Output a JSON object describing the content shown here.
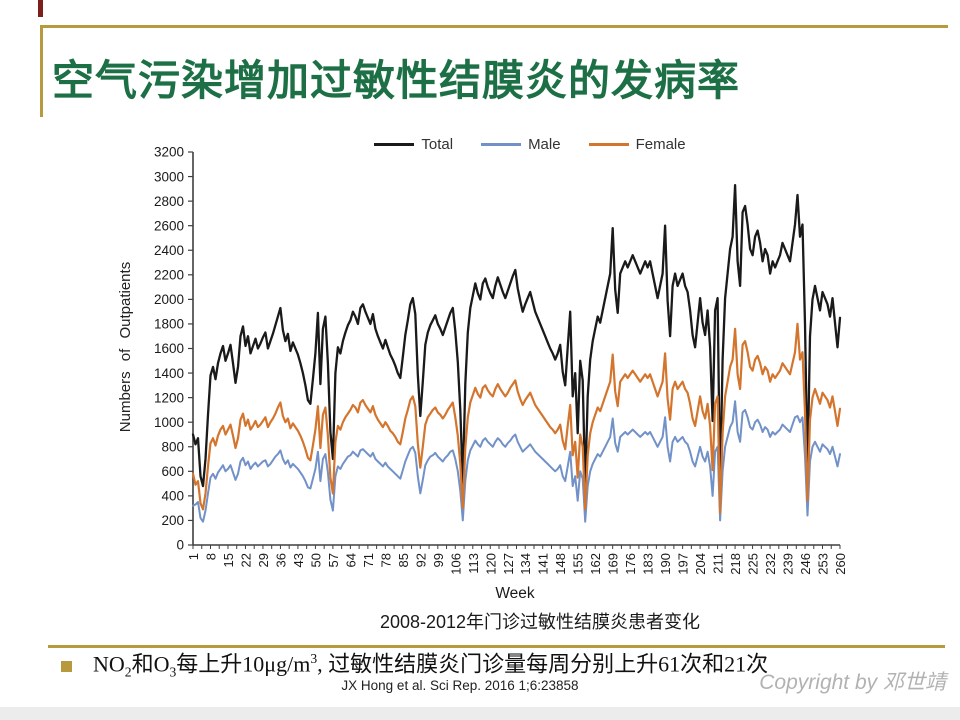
{
  "slide": {
    "title": "空气污染增加过敏性结膜炎的发病率",
    "title_color": "#1d6f45",
    "accent_gold": "#b89a3e",
    "maroon_accent": "#7d1f1a"
  },
  "chart_data": {
    "type": "line",
    "title": "2008-2012年门诊过敏性结膜炎患者变化",
    "xlabel": "Week",
    "ylabel": "Numbers of Outpatients",
    "legend_position": "top",
    "grid": false,
    "x_range": [
      1,
      260
    ],
    "ylim": [
      0,
      3200
    ],
    "ytick_step": 200,
    "xtick_minor_step": 3.5,
    "xticks": [
      1,
      8,
      15,
      22,
      29,
      36,
      43,
      50,
      57,
      64,
      71,
      78,
      85,
      92,
      99,
      106,
      113,
      120,
      127,
      134,
      141,
      148,
      155,
      162,
      169,
      176,
      183,
      190,
      197,
      204,
      211,
      218,
      225,
      232,
      239,
      246,
      253,
      260
    ],
    "series": [
      {
        "name": "Total",
        "color": "#1a1a1a",
        "values": [
          900,
          820,
          870,
          560,
          480,
          700,
          1060,
          1380,
          1450,
          1350,
          1480,
          1560,
          1620,
          1500,
          1560,
          1630,
          1480,
          1320,
          1450,
          1700,
          1780,
          1620,
          1700,
          1560,
          1620,
          1680,
          1600,
          1640,
          1690,
          1730,
          1600,
          1660,
          1720,
          1790,
          1860,
          1930,
          1750,
          1660,
          1720,
          1580,
          1650,
          1600,
          1550,
          1480,
          1400,
          1300,
          1180,
          1150,
          1350,
          1560,
          1890,
          1310,
          1760,
          1860,
          1480,
          920,
          700,
          1400,
          1610,
          1560,
          1660,
          1730,
          1790,
          1830,
          1900,
          1860,
          1800,
          1930,
          1960,
          1900,
          1850,
          1800,
          1880,
          1760,
          1700,
          1650,
          1600,
          1670,
          1610,
          1550,
          1510,
          1460,
          1400,
          1360,
          1530,
          1710,
          1830,
          1960,
          2010,
          1880,
          1390,
          1050,
          1330,
          1630,
          1730,
          1790,
          1830,
          1870,
          1800,
          1760,
          1710,
          1770,
          1830,
          1890,
          1930,
          1740,
          1490,
          1100,
          500,
          1310,
          1730,
          1930,
          2030,
          2130,
          2050,
          2000,
          2130,
          2170,
          2100,
          2050,
          2010,
          2110,
          2180,
          2120,
          2060,
          2010,
          2070,
          2130,
          2190,
          2240,
          2090,
          1990,
          1900,
          1960,
          2010,
          2060,
          1980,
          1900,
          1850,
          1800,
          1750,
          1700,
          1650,
          1600,
          1560,
          1510,
          1560,
          1630,
          1410,
          1300,
          1610,
          1900,
          1210,
          1400,
          910,
          1500,
          1340,
          480,
          1210,
          1510,
          1660,
          1760,
          1860,
          1810,
          1910,
          2010,
          2110,
          2210,
          2580,
          2080,
          1890,
          2210,
          2260,
          2310,
          2260,
          2310,
          2360,
          2310,
          2260,
          2210,
          2260,
          2310,
          2260,
          2310,
          2210,
          2110,
          2010,
          2110,
          2210,
          2600,
          1990,
          1700,
          2110,
          2210,
          2110,
          2160,
          2210,
          2110,
          2060,
          1910,
          1710,
          1610,
          1810,
          2010,
          1810,
          1710,
          1910,
          1610,
          1010,
          1910,
          2010,
          460,
          1510,
          2010,
          2210,
          2410,
          2510,
          2930,
          2310,
          2110,
          2710,
          2760,
          2610,
          2410,
          2360,
          2510,
          2560,
          2460,
          2310,
          2410,
          2360,
          2210,
          2310,
          2260,
          2310,
          2360,
          2460,
          2410,
          2360,
          2310,
          2460,
          2610,
          2850,
          2510,
          2610,
          1800,
          600,
          1700,
          2000,
          2110,
          2010,
          1910,
          2060,
          2010,
          1960,
          1860,
          2010,
          1810,
          1610,
          1850
        ]
      },
      {
        "name": "Male",
        "color": "#7191c8",
        "values": [
          320,
          330,
          350,
          220,
          190,
          280,
          420,
          550,
          580,
          540,
          590,
          620,
          650,
          600,
          620,
          650,
          590,
          530,
          580,
          680,
          710,
          650,
          680,
          620,
          650,
          670,
          640,
          660,
          680,
          690,
          640,
          660,
          690,
          720,
          740,
          770,
          700,
          660,
          690,
          630,
          660,
          640,
          620,
          590,
          560,
          520,
          470,
          460,
          540,
          620,
          760,
          520,
          700,
          740,
          590,
          370,
          280,
          560,
          640,
          620,
          660,
          690,
          720,
          730,
          760,
          740,
          720,
          770,
          780,
          760,
          740,
          720,
          750,
          700,
          680,
          660,
          640,
          670,
          640,
          620,
          600,
          580,
          560,
          540,
          610,
          680,
          730,
          780,
          800,
          750,
          560,
          420,
          530,
          650,
          690,
          720,
          730,
          750,
          720,
          700,
          680,
          710,
          730,
          760,
          770,
          700,
          600,
          440,
          200,
          520,
          690,
          770,
          810,
          850,
          820,
          800,
          850,
          870,
          840,
          820,
          800,
          840,
          870,
          850,
          820,
          800,
          830,
          850,
          880,
          900,
          840,
          800,
          760,
          780,
          800,
          820,
          790,
          760,
          740,
          720,
          700,
          680,
          660,
          640,
          620,
          600,
          620,
          650,
          560,
          520,
          640,
          760,
          480,
          560,
          360,
          600,
          540,
          190,
          480,
          600,
          660,
          700,
          740,
          720,
          760,
          800,
          840,
          880,
          1030,
          830,
          760,
          880,
          900,
          920,
          900,
          920,
          940,
          920,
          900,
          880,
          900,
          920,
          900,
          920,
          880,
          840,
          800,
          840,
          880,
          1040,
          800,
          680,
          840,
          880,
          840,
          860,
          880,
          840,
          820,
          760,
          680,
          640,
          720,
          800,
          720,
          680,
          760,
          640,
          400,
          760,
          800,
          200,
          600,
          800,
          880,
          960,
          1000,
          1170,
          920,
          840,
          1080,
          1100,
          1040,
          960,
          940,
          1000,
          1020,
          980,
          920,
          960,
          940,
          880,
          920,
          900,
          920,
          940,
          980,
          960,
          940,
          920,
          980,
          1040,
          1050,
          1000,
          1040,
          720,
          240,
          680,
          800,
          840,
          800,
          760,
          820,
          800,
          780,
          740,
          800,
          720,
          640,
          740
        ]
      },
      {
        "name": "Female",
        "color": "#d4752e",
        "values": [
          580,
          490,
          520,
          340,
          290,
          420,
          640,
          830,
          870,
          810,
          890,
          940,
          970,
          900,
          940,
          980,
          890,
          790,
          870,
          1020,
          1070,
          970,
          1020,
          940,
          970,
          1010,
          960,
          980,
          1010,
          1040,
          960,
          1000,
          1030,
          1070,
          1120,
          1160,
          1050,
          1000,
          1030,
          950,
          990,
          960,
          930,
          890,
          840,
          780,
          710,
          690,
          810,
          940,
          1130,
          790,
          1060,
          1120,
          890,
          550,
          420,
          840,
          970,
          940,
          1000,
          1040,
          1070,
          1100,
          1140,
          1120,
          1080,
          1160,
          1180,
          1140,
          1110,
          1080,
          1130,
          1060,
          1020,
          990,
          960,
          1000,
          970,
          930,
          910,
          880,
          840,
          820,
          920,
          1030,
          1100,
          1180,
          1210,
          1130,
          830,
          630,
          800,
          980,
          1040,
          1070,
          1100,
          1120,
          1080,
          1060,
          1030,
          1060,
          1100,
          1130,
          1160,
          1040,
          890,
          660,
          300,
          790,
          1040,
          1160,
          1220,
          1280,
          1230,
          1200,
          1280,
          1300,
          1260,
          1230,
          1210,
          1270,
          1310,
          1270,
          1240,
          1210,
          1240,
          1280,
          1310,
          1340,
          1250,
          1190,
          1140,
          1180,
          1210,
          1240,
          1190,
          1140,
          1110,
          1080,
          1050,
          1020,
          990,
          960,
          940,
          910,
          940,
          980,
          850,
          780,
          970,
          1140,
          730,
          840,
          550,
          900,
          800,
          290,
          730,
          910,
          1000,
          1060,
          1120,
          1090,
          1150,
          1210,
          1270,
          1330,
          1550,
          1250,
          1130,
          1330,
          1360,
          1390,
          1360,
          1390,
          1420,
          1390,
          1360,
          1330,
          1360,
          1390,
          1360,
          1390,
          1330,
          1270,
          1210,
          1270,
          1330,
          1560,
          1190,
          1020,
          1270,
          1330,
          1270,
          1300,
          1330,
          1270,
          1240,
          1150,
          1030,
          970,
          1090,
          1210,
          1090,
          1030,
          1150,
          970,
          610,
          1150,
          1210,
          260,
          910,
          1210,
          1330,
          1450,
          1510,
          1760,
          1390,
          1270,
          1630,
          1660,
          1570,
          1450,
          1420,
          1510,
          1540,
          1480,
          1390,
          1450,
          1420,
          1330,
          1390,
          1360,
          1390,
          1420,
          1480,
          1450,
          1420,
          1390,
          1480,
          1570,
          1800,
          1510,
          1570,
          1080,
          360,
          1020,
          1200,
          1270,
          1210,
          1150,
          1240,
          1210,
          1180,
          1120,
          1210,
          1090,
          970,
          1110
        ]
      }
    ]
  },
  "footer": {
    "bullet_parts": [
      {
        "t": "NO"
      },
      {
        "t": "2",
        "s": "sub"
      },
      {
        "t": "和O"
      },
      {
        "t": "3",
        "s": "sub"
      },
      {
        "t": "每上升10μg/m"
      },
      {
        "t": "3",
        "s": "sup"
      },
      {
        "t": ", 过敏性结膜炎门诊量每周分别上升61次和21次"
      }
    ],
    "citation": "JX Hong et al. Sci Rep. 2016 1;6:23858",
    "copyright": "Copyright by 邓世靖",
    "copyright_color": "#b2b2b2"
  }
}
